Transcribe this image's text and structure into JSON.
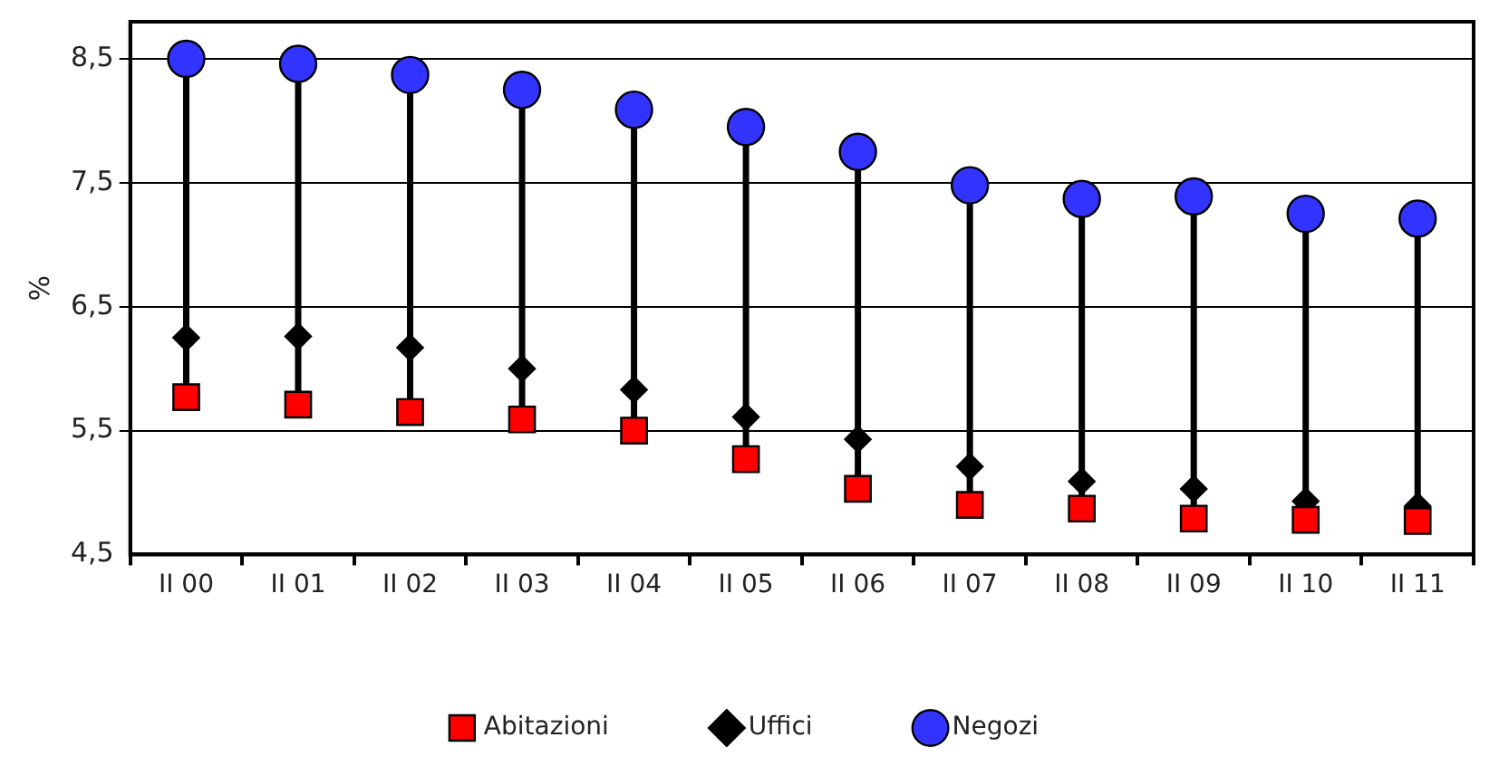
{
  "chart_data": {
    "type": "scatter",
    "ylabel": "%",
    "categories": [
      "II 00",
      "II 01",
      "II 02",
      "II 03",
      "II 04",
      "II 05",
      "II 06",
      "II 07",
      "II 08",
      "II 09",
      "II 10",
      "II 11"
    ],
    "series": [
      {
        "name": "Abitazioni",
        "color": "#ff0000",
        "marker": "square",
        "values": [
          5.77,
          5.71,
          5.65,
          5.59,
          5.5,
          5.27,
          5.03,
          4.9,
          4.87,
          4.79,
          4.78,
          4.77
        ]
      },
      {
        "name": "Uffici",
        "color": "#000000",
        "marker": "diamond",
        "values": [
          6.25,
          6.26,
          6.17,
          6.0,
          5.83,
          5.61,
          5.43,
          5.21,
          5.09,
          5.03,
          4.93,
          4.89
        ]
      },
      {
        "name": "Negozi",
        "color": "#3333ff",
        "marker": "circle",
        "values": [
          8.5,
          8.46,
          8.37,
          8.25,
          8.09,
          7.95,
          7.75,
          7.48,
          7.37,
          7.39,
          7.25,
          7.21
        ]
      }
    ],
    "ylim": [
      4.5,
      8.8
    ],
    "yticks": [
      {
        "value": 4.5,
        "label": "4,5"
      },
      {
        "value": 5.5,
        "label": "5,5"
      },
      {
        "value": 6.5,
        "label": "6,5"
      },
      {
        "value": 7.5,
        "label": "7,5"
      },
      {
        "value": 8.5,
        "label": "8,5"
      }
    ],
    "grid": "y",
    "legend": "bottom"
  }
}
